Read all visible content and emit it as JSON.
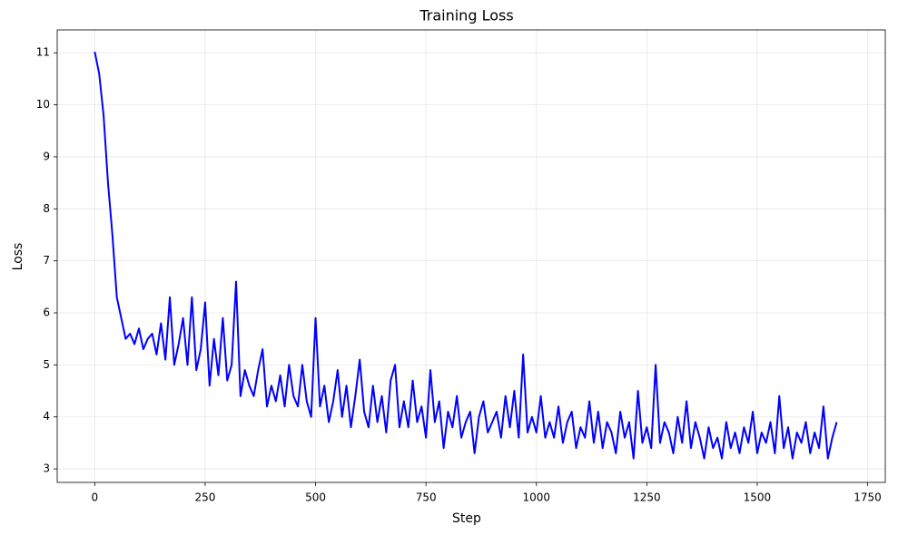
{
  "chart_data": {
    "type": "line",
    "title": "Training Loss",
    "x_label": "Step",
    "y_label": "Loss",
    "grid": true,
    "xlim": [
      -85,
      1790
    ],
    "ylim": [
      2.74,
      11.44
    ],
    "xticks": [
      0,
      250,
      500,
      750,
      1000,
      1250,
      1500,
      1750
    ],
    "yticks": [
      3,
      4,
      5,
      6,
      7,
      8,
      9,
      10,
      11
    ],
    "x": [
      0,
      10,
      20,
      30,
      40,
      50,
      60,
      70,
      80,
      90,
      100,
      110,
      120,
      130,
      140,
      150,
      160,
      170,
      180,
      190,
      200,
      210,
      220,
      230,
      240,
      250,
      260,
      270,
      280,
      290,
      300,
      310,
      320,
      330,
      340,
      350,
      360,
      370,
      380,
      390,
      400,
      410,
      420,
      430,
      440,
      450,
      460,
      470,
      480,
      490,
      500,
      510,
      520,
      530,
      540,
      550,
      560,
      570,
      580,
      590,
      600,
      610,
      620,
      630,
      640,
      650,
      660,
      670,
      680,
      690,
      700,
      710,
      720,
      730,
      740,
      750,
      760,
      770,
      780,
      790,
      800,
      810,
      820,
      830,
      840,
      850,
      860,
      870,
      880,
      890,
      900,
      910,
      920,
      930,
      940,
      950,
      960,
      970,
      980,
      990,
      1000,
      1010,
      1020,
      1030,
      1040,
      1050,
      1060,
      1070,
      1080,
      1090,
      1100,
      1110,
      1120,
      1130,
      1140,
      1150,
      1160,
      1170,
      1180,
      1190,
      1200,
      1210,
      1220,
      1230,
      1240,
      1250,
      1260,
      1270,
      1280,
      1290,
      1300,
      1310,
      1320,
      1330,
      1340,
      1350,
      1360,
      1370,
      1380,
      1390,
      1400,
      1410,
      1420,
      1430,
      1440,
      1450,
      1460,
      1470,
      1480,
      1490,
      1500,
      1510,
      1520,
      1530,
      1540,
      1550,
      1560,
      1570,
      1580,
      1590,
      1600,
      1610,
      1620,
      1630,
      1640,
      1650,
      1660,
      1670,
      1680
    ],
    "series": [
      {
        "name": "Loss",
        "color": "#0000ff",
        "values": [
          11.02,
          10.6,
          9.8,
          8.5,
          7.5,
          6.3,
          5.9,
          5.5,
          5.6,
          5.4,
          5.7,
          5.3,
          5.5,
          5.6,
          5.2,
          5.8,
          5.1,
          6.3,
          5.0,
          5.4,
          5.9,
          5.0,
          6.3,
          4.9,
          5.3,
          6.2,
          4.6,
          5.5,
          4.8,
          5.9,
          4.7,
          5.0,
          6.6,
          4.4,
          4.9,
          4.6,
          4.4,
          4.9,
          5.3,
          4.2,
          4.6,
          4.3,
          4.8,
          4.2,
          5.0,
          4.4,
          4.2,
          5.0,
          4.3,
          4.0,
          5.9,
          4.2,
          4.6,
          3.9,
          4.3,
          4.9,
          4.0,
          4.6,
          3.8,
          4.4,
          5.1,
          4.1,
          3.8,
          4.6,
          3.9,
          4.4,
          3.7,
          4.7,
          5.0,
          3.8,
          4.3,
          3.8,
          4.7,
          3.9,
          4.2,
          3.6,
          4.9,
          3.9,
          4.3,
          3.4,
          4.1,
          3.8,
          4.4,
          3.6,
          3.9,
          4.1,
          3.3,
          4.0,
          4.3,
          3.7,
          3.9,
          4.1,
          3.6,
          4.4,
          3.8,
          4.5,
          3.6,
          5.2,
          3.7,
          4.0,
          3.7,
          4.4,
          3.6,
          3.9,
          3.6,
          4.2,
          3.5,
          3.9,
          4.1,
          3.4,
          3.8,
          3.6,
          4.3,
          3.5,
          4.1,
          3.4,
          3.9,
          3.7,
          3.3,
          4.1,
          3.6,
          3.9,
          3.2,
          4.5,
          3.5,
          3.8,
          3.4,
          5.0,
          3.5,
          3.9,
          3.7,
          3.3,
          4.0,
          3.5,
          4.3,
          3.4,
          3.9,
          3.6,
          3.2,
          3.8,
          3.4,
          3.6,
          3.2,
          3.9,
          3.4,
          3.7,
          3.3,
          3.8,
          3.5,
          4.1,
          3.3,
          3.7,
          3.5,
          3.9,
          3.3,
          4.4,
          3.4,
          3.8,
          3.2,
          3.7,
          3.5,
          3.9,
          3.3,
          3.7,
          3.4,
          4.2,
          3.2,
          3.6,
          3.9
        ]
      }
    ]
  }
}
